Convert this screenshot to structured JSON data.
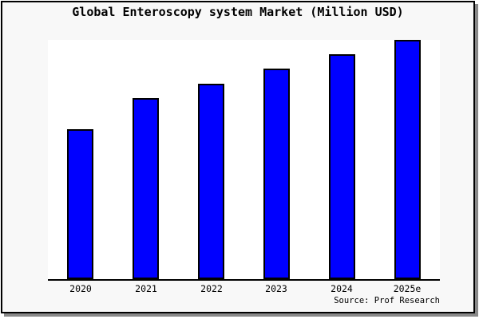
{
  "chart": {
    "title": "Global Enteroscopy system Market (Million USD)",
    "source": "Source: Prof Research"
  },
  "chart_data": {
    "type": "bar",
    "title": "Global Enteroscopy system Market (Million USD)",
    "categories": [
      "2020",
      "2021",
      "2022",
      "2023",
      "2024",
      "2025e"
    ],
    "values": [
      62.7,
      75.7,
      81.7,
      88.0,
      94.0,
      100.0
    ],
    "value_unit": "relative index (no y-axis scale shown in chart; 2025e bar = 100)",
    "xlabel": "",
    "ylabel": "",
    "ylim": [
      0,
      100
    ],
    "grid": false,
    "legend": false,
    "annotations": [
      "Source: Prof Research"
    ],
    "bar_fill_color": "#0000ff",
    "bar_edge_color": "#000000"
  },
  "colors": {
    "chart_background": "#f8f8f8",
    "plot_background": "#ffffff",
    "frame_border": "#000000",
    "frame_shadow": "#888888",
    "axis_line": "#000000",
    "bar_fill": "#0000ff",
    "bar_edge": "#000000"
  }
}
